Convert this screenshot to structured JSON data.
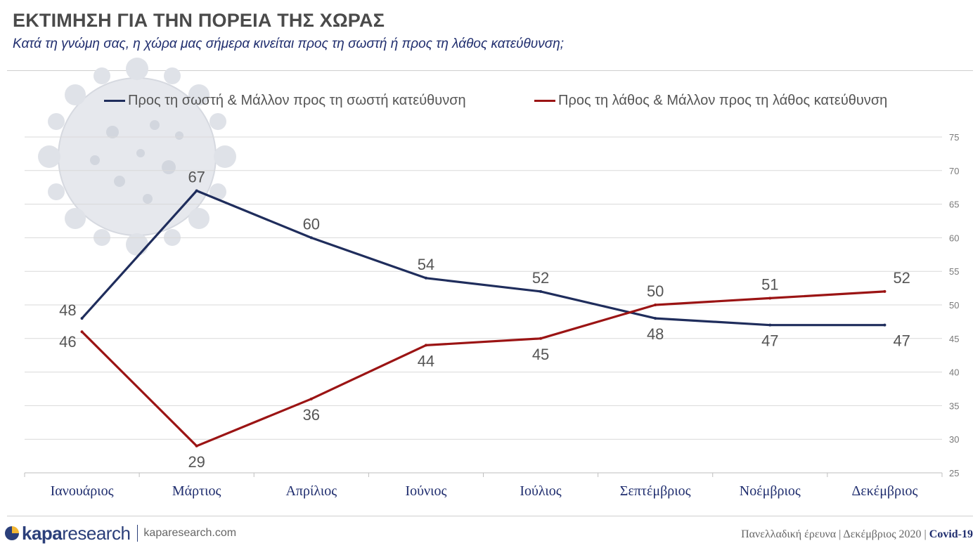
{
  "header": {
    "title": "ΕΚΤΙΜΗΣΗ ΓΙΑ ΤΗΝ ΠΟΡΕΙΑ ΤΗΣ ΧΩΡΑΣ",
    "subtitle": "Κατά τη γνώμη σας, η χώρα μας σήμερα κινείται προς τη σωστή ή προς τη λάθος κατεύθυνση;"
  },
  "colors": {
    "series_right": "#1f2d5c",
    "series_wrong": "#9b1414",
    "gridline": "#d9d9d9",
    "title": "#4a4a4a",
    "subtitle": "#1f2d6e"
  },
  "chart_data": {
    "type": "line",
    "categories": [
      "Ιανουάριος",
      "Μάρτιος",
      "Απρίλιος",
      "Ιούνιος",
      "Ιούλιος",
      "Σεπτέμβριος",
      "Νοέμβριος",
      "Δεκέμβριος"
    ],
    "series": [
      {
        "name": "Προς τη σωστή & Μάλλον προς τη σωστή κατεύθυνση",
        "values": [
          48,
          67,
          60,
          54,
          52,
          48,
          47,
          47
        ]
      },
      {
        "name": "Προς τη λάθος & Μάλλον προς τη λάθος κατεύθυνση",
        "values": [
          46,
          29,
          36,
          44,
          45,
          50,
          51,
          52
        ]
      }
    ],
    "ylim": [
      25,
      75
    ],
    "yticks": [
      25,
      30,
      35,
      40,
      45,
      50,
      55,
      60,
      65,
      70,
      75
    ],
    "y_axis_side": "right",
    "grid": true,
    "legend_position": "top",
    "data_labels": true
  },
  "footer": {
    "brand_bold": "kapa",
    "brand_light": "research",
    "website": "kaparesearch.com",
    "survey_info": "Πανελλαδική έρευνα | Δεκέμβριος 2020 | ",
    "topic": "Covid-19"
  }
}
